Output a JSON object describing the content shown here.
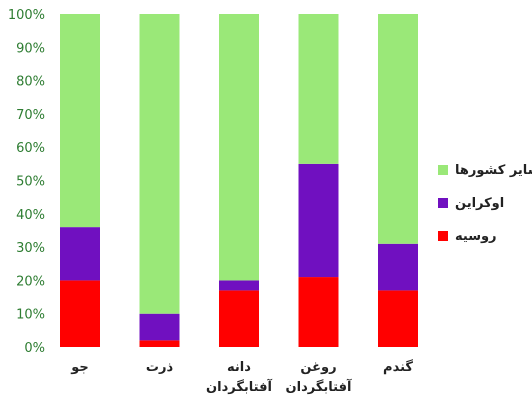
{
  "chart_data": {
    "type": "bar",
    "stacked": "percent",
    "categories": [
      "جو",
      "ذرت",
      "دانه\nآفتابگردان",
      "روغن\nآفتابگردان",
      "گندم"
    ],
    "series": [
      {
        "name": "روسیه",
        "color": "#ff0000",
        "values": [
          20,
          2,
          17,
          21,
          17
        ]
      },
      {
        "name": "اوکراین",
        "color": "#7010c0",
        "values": [
          16,
          8,
          3,
          34,
          14
        ]
      },
      {
        "name": "سایر کشورها",
        "color": "#9ae878",
        "values": [
          64,
          90,
          80,
          45,
          69
        ]
      }
    ],
    "y_ticks": [
      "0%",
      "10%",
      "20%",
      "30%",
      "40%",
      "50%",
      "60%",
      "70%",
      "80%",
      "90%",
      "100%"
    ],
    "ylim": [
      0,
      100
    ],
    "legend_position": "right",
    "grid": false
  }
}
